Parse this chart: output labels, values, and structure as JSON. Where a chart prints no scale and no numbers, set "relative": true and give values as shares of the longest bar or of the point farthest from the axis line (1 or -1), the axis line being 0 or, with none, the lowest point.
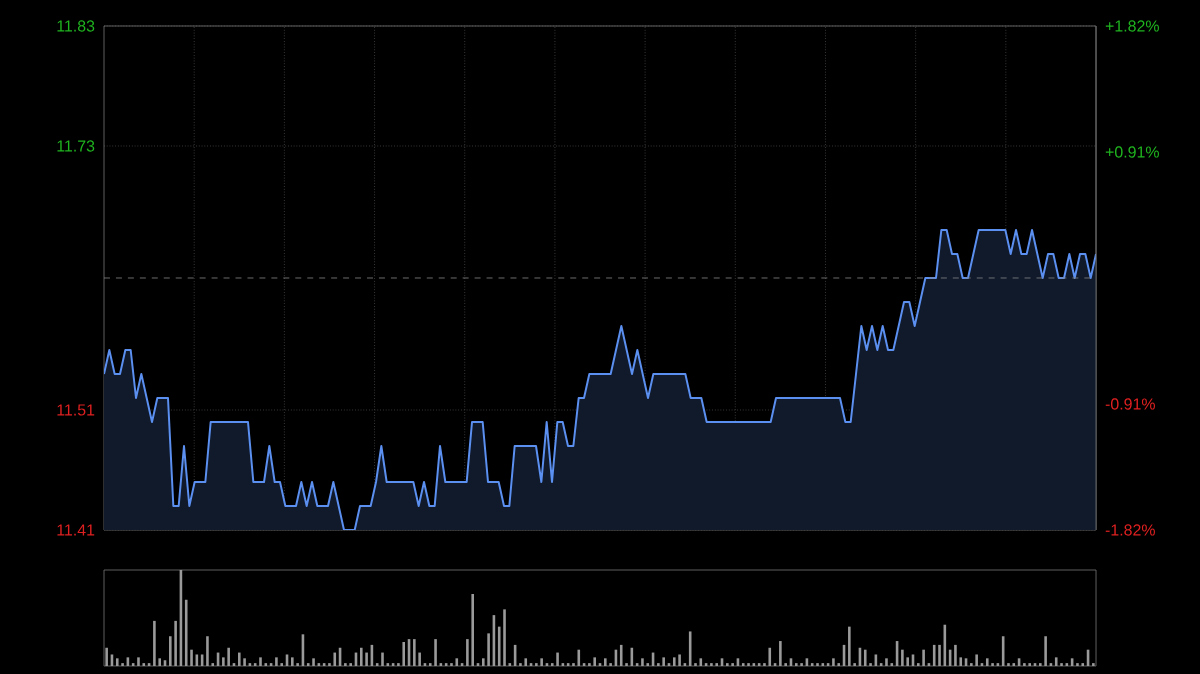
{
  "chart_data": [
    {
      "type": "area",
      "ylim": [
        11.41,
        11.83
      ],
      "y2lim": [
        -1.82,
        1.82
      ],
      "yticks": [
        11.41,
        11.51,
        11.73,
        11.83
      ],
      "y2ticks": [
        {
          "value": -1.82,
          "label": "-1.82%"
        },
        {
          "value": -0.91,
          "label": "-0.91%"
        },
        {
          "value": 0.91,
          "label": "+0.91%"
        },
        {
          "value": 1.82,
          "label": "+1.82%"
        }
      ],
      "grid": true,
      "ref_lines": [
        {
          "axis": "y",
          "value": 11.62,
          "line_style": "dashed",
          "color": "#888888"
        }
      ],
      "categories": [
        null,
        null,
        null,
        null,
        null,
        null,
        null,
        null,
        null,
        null,
        null,
        null,
        null,
        null,
        null,
        null,
        null,
        null,
        null,
        null,
        null,
        null,
        null,
        null,
        null,
        null,
        null,
        null,
        null,
        null,
        null,
        null,
        null,
        null,
        null,
        null,
        null,
        null,
        null,
        null,
        null,
        null,
        null,
        null,
        null,
        null,
        null,
        null,
        null,
        null,
        null,
        null,
        null,
        null,
        null,
        null,
        null,
        null,
        null,
        null,
        null,
        null,
        null,
        null,
        null,
        null,
        null,
        null,
        null,
        null,
        null,
        null,
        null,
        null,
        null,
        null,
        null,
        null,
        null,
        null,
        null,
        null,
        null,
        null,
        null,
        null,
        null,
        null,
        null,
        null,
        null,
        null,
        null,
        null,
        null,
        null,
        null,
        null,
        null,
        null,
        null,
        null,
        null,
        null,
        null,
        null,
        null,
        null,
        null,
        null,
        null,
        null,
        null,
        null,
        null,
        null,
        null,
        null,
        null,
        null,
        null,
        null,
        null,
        null,
        null,
        null,
        null,
        null,
        null,
        null,
        null,
        null,
        null,
        null,
        null,
        null,
        null,
        null,
        null,
        null,
        null,
        null,
        null,
        null,
        null,
        null,
        null,
        null,
        null,
        null,
        null,
        null,
        null,
        null,
        null,
        null,
        null,
        null,
        null,
        null,
        null,
        null,
        null,
        null,
        null,
        null,
        null,
        null,
        null,
        null,
        null,
        null,
        null,
        null,
        null,
        null,
        null,
        null,
        null,
        null,
        null,
        null,
        null,
        null,
        null,
        null,
        null
      ],
      "series": [
        {
          "color": "#5b8ff0",
          "values": [
            11.54,
            11.56,
            11.54,
            11.54,
            11.56,
            11.56,
            11.52,
            11.54,
            11.52,
            11.5,
            11.52,
            11.52,
            11.52,
            11.43,
            11.43,
            11.48,
            11.43,
            11.45,
            11.45,
            11.45,
            11.5,
            11.5,
            11.5,
            11.5,
            11.5,
            11.5,
            11.5,
            11.5,
            11.45,
            11.45,
            11.45,
            11.48,
            11.45,
            11.45,
            11.43,
            11.43,
            11.43,
            11.45,
            11.43,
            11.45,
            11.43,
            11.43,
            11.43,
            11.45,
            11.43,
            11.41,
            11.41,
            11.41,
            11.43,
            11.43,
            11.43,
            11.45,
            11.48,
            11.45,
            11.45,
            11.45,
            11.45,
            11.45,
            11.45,
            11.43,
            11.45,
            11.43,
            11.43,
            11.48,
            11.45,
            11.45,
            11.45,
            11.45,
            11.45,
            11.5,
            11.5,
            11.5,
            11.45,
            11.45,
            11.45,
            11.43,
            11.43,
            11.48,
            11.48,
            11.48,
            11.48,
            11.48,
            11.45,
            11.5,
            11.45,
            11.5,
            11.5,
            11.48,
            11.48,
            11.52,
            11.52,
            11.54,
            11.54,
            11.54,
            11.54,
            11.54,
            11.56,
            11.58,
            11.56,
            11.54,
            11.56,
            11.54,
            11.52,
            11.54,
            11.54,
            11.54,
            11.54,
            11.54,
            11.54,
            11.54,
            11.52,
            11.52,
            11.52,
            11.5,
            11.5,
            11.5,
            11.5,
            11.5,
            11.5,
            11.5,
            11.5,
            11.5,
            11.5,
            11.5,
            11.5,
            11.5,
            11.52,
            11.52,
            11.52,
            11.52,
            11.52,
            11.52,
            11.52,
            11.52,
            11.52,
            11.52,
            11.52,
            11.52,
            11.52,
            11.5,
            11.5,
            11.54,
            11.58,
            11.56,
            11.58,
            11.56,
            11.58,
            11.56,
            11.56,
            11.58,
            11.6,
            11.6,
            11.58,
            11.6,
            11.62,
            11.62,
            11.62,
            11.66,
            11.66,
            11.64,
            11.64,
            11.62,
            11.62,
            11.64,
            11.66,
            11.66,
            11.66,
            11.66,
            11.66,
            11.66,
            11.64,
            11.66,
            11.64,
            11.64,
            11.66,
            11.64,
            11.62,
            11.64,
            11.64,
            11.62,
            11.62,
            11.64,
            11.62,
            11.64,
            11.64,
            11.62,
            11.64
          ]
        }
      ]
    },
    {
      "type": "bar",
      "relative": true,
      "color": "#9a9a9a",
      "categories": [
        null,
        null,
        null,
        null,
        null,
        null,
        null,
        null,
        null,
        null,
        null,
        null,
        null,
        null,
        null,
        null,
        null,
        null,
        null,
        null,
        null,
        null,
        null,
        null,
        null,
        null,
        null,
        null,
        null,
        null,
        null,
        null,
        null,
        null,
        null,
        null,
        null,
        null,
        null,
        null,
        null,
        null,
        null,
        null,
        null,
        null,
        null,
        null,
        null,
        null,
        null,
        null,
        null,
        null,
        null,
        null,
        null,
        null,
        null,
        null,
        null,
        null,
        null,
        null,
        null,
        null,
        null,
        null,
        null,
        null,
        null,
        null,
        null,
        null,
        null,
        null,
        null,
        null,
        null,
        null,
        null,
        null,
        null,
        null,
        null,
        null,
        null,
        null,
        null,
        null,
        null,
        null,
        null,
        null,
        null,
        null,
        null,
        null,
        null,
        null,
        null,
        null,
        null,
        null,
        null,
        null,
        null,
        null,
        null,
        null,
        null,
        null,
        null,
        null,
        null,
        null,
        null,
        null,
        null,
        null,
        null,
        null,
        null,
        null,
        null,
        null,
        null,
        null,
        null,
        null,
        null,
        null,
        null,
        null,
        null,
        null,
        null,
        null,
        null,
        null,
        null,
        null,
        null,
        null,
        null,
        null,
        null,
        null,
        null,
        null,
        null,
        null,
        null,
        null,
        null,
        null,
        null,
        null,
        null,
        null,
        null,
        null,
        null,
        null,
        null,
        null,
        null,
        null,
        null,
        null,
        null,
        null,
        null,
        null,
        null,
        null,
        null,
        null,
        null,
        null,
        null,
        null,
        null,
        null,
        null,
        null,
        null
      ],
      "values": [
        0.19,
        0.12,
        0.08,
        0.03,
        0.09,
        0.03,
        0.09,
        0.03,
        0.03,
        0.47,
        0.08,
        0.06,
        0.31,
        0.47,
        1,
        0.69,
        0.17,
        0.12,
        0.12,
        0.31,
        0.03,
        0.14,
        0.09,
        0.19,
        0.03,
        0.14,
        0.08,
        0.03,
        0.03,
        0.09,
        0.03,
        0.03,
        0.09,
        0.03,
        0.12,
        0.09,
        0.03,
        0.33,
        0.03,
        0.08,
        0.03,
        0.03,
        0.03,
        0.14,
        0.19,
        0.03,
        0.03,
        0.14,
        0.19,
        0.14,
        0.22,
        0.03,
        0.14,
        0.03,
        0.03,
        0.03,
        0.25,
        0.28,
        0.28,
        0.14,
        0.03,
        0.03,
        0.28,
        0.03,
        0.03,
        0.03,
        0.08,
        0.03,
        0.28,
        0.75,
        0.03,
        0.08,
        0.34,
        0.53,
        0.41,
        0.59,
        0.03,
        0.22,
        0.03,
        0.08,
        0.03,
        0.03,
        0.08,
        0.03,
        0.03,
        0.14,
        0.03,
        0.03,
        0.03,
        0.17,
        0.03,
        0.03,
        0.09,
        0.03,
        0.08,
        0.03,
        0.17,
        0.22,
        0.03,
        0.19,
        0.03,
        0.08,
        0.03,
        0.14,
        0.03,
        0.09,
        0.03,
        0.09,
        0.12,
        0.03,
        0.36,
        0.03,
        0.08,
        0.03,
        0.03,
        0.03,
        0.08,
        0.03,
        0.03,
        0.08,
        0.03,
        0.03,
        0.03,
        0.03,
        0.03,
        0.19,
        0.03,
        0.26,
        0.03,
        0.08,
        0.03,
        0.03,
        0.08,
        0.03,
        0.03,
        0.03,
        0.03,
        0.08,
        0.03,
        0.22,
        0.41,
        0.03,
        0.19,
        0.17,
        0.03,
        0.12,
        0.03,
        0.08,
        0.03,
        0.26,
        0.17,
        0.09,
        0.12,
        0.03,
        0.17,
        0.03,
        0.22,
        0.22,
        0.43,
        0.17,
        0.22,
        0.09,
        0.08,
        0.03,
        0.12,
        0.03,
        0.08,
        0.03,
        0.03,
        0.31,
        0.03,
        0.03,
        0.08,
        0.03,
        0.03,
        0.03,
        0.03,
        0.31,
        0.03,
        0.09,
        0.03,
        0.03,
        0.08,
        0.03,
        0.03,
        0.17,
        0.03
      ]
    }
  ]
}
